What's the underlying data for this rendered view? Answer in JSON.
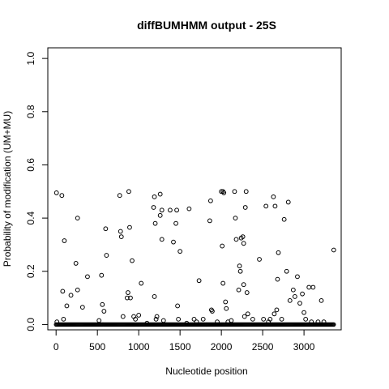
{
  "chart_data": {
    "type": "scatter",
    "title": "diffBUMHMM output - 25S",
    "xlabel": "Nucleotide position",
    "ylabel": "Probability of modification (UM+MU)",
    "xlim": [
      -100,
      3450
    ],
    "ylim": [
      -0.02,
      1.04
    ],
    "xticks": [
      0,
      500,
      1000,
      1500,
      2000,
      2500,
      3000
    ],
    "xtick_labels": [
      "0",
      "500",
      "1000",
      "1500",
      "2000",
      "2500",
      "3000"
    ],
    "yticks": [
      0.0,
      0.2,
      0.4,
      0.6,
      0.8,
      1.0
    ],
    "ytick_labels": [
      "0.0",
      "0.2",
      "0.4",
      "0.6",
      "0.8",
      "1.0"
    ],
    "grid": false,
    "baseline": {
      "x_start": 0,
      "x_end": 3360,
      "step": 10,
      "y": 0.0
    },
    "points": [
      [
        5,
        0.495
      ],
      [
        10,
        0.01
      ],
      [
        70,
        0.485
      ],
      [
        80,
        0.125
      ],
      [
        90,
        0.02
      ],
      [
        100,
        0.315
      ],
      [
        130,
        0.07
      ],
      [
        180,
        0.11
      ],
      [
        240,
        0.23
      ],
      [
        260,
        0.4
      ],
      [
        260,
        0.13
      ],
      [
        320,
        0.065
      ],
      [
        380,
        0.18
      ],
      [
        520,
        0.015
      ],
      [
        550,
        0.185
      ],
      [
        560,
        0.075
      ],
      [
        580,
        0.05
      ],
      [
        600,
        0.36
      ],
      [
        610,
        0.26
      ],
      [
        770,
        0.485
      ],
      [
        780,
        0.35
      ],
      [
        790,
        0.33
      ],
      [
        810,
        0.03
      ],
      [
        860,
        0.1
      ],
      [
        870,
        0.12
      ],
      [
        880,
        0.5
      ],
      [
        890,
        0.365
      ],
      [
        900,
        0.1
      ],
      [
        920,
        0.24
      ],
      [
        940,
        0.03
      ],
      [
        960,
        0.02
      ],
      [
        1000,
        0.035
      ],
      [
        1030,
        0.155
      ],
      [
        1100,
        0.005
      ],
      [
        1180,
        0.44
      ],
      [
        1190,
        0.48
      ],
      [
        1190,
        0.105
      ],
      [
        1200,
        0.38
      ],
      [
        1210,
        0.02
      ],
      [
        1220,
        0.03
      ],
      [
        1260,
        0.49
      ],
      [
        1260,
        0.41
      ],
      [
        1280,
        0.43
      ],
      [
        1280,
        0.32
      ],
      [
        1300,
        0.015
      ],
      [
        1380,
        0.43
      ],
      [
        1420,
        0.31
      ],
      [
        1450,
        0.38
      ],
      [
        1460,
        0.43
      ],
      [
        1470,
        0.07
      ],
      [
        1480,
        0.02
      ],
      [
        1500,
        0.275
      ],
      [
        1580,
        0.005
      ],
      [
        1610,
        0.435
      ],
      [
        1670,
        0.02
      ],
      [
        1700,
        0.01
      ],
      [
        1730,
        0.165
      ],
      [
        1780,
        0.02
      ],
      [
        1860,
        0.39
      ],
      [
        1870,
        0.465
      ],
      [
        1880,
        0.055
      ],
      [
        1890,
        0.05
      ],
      [
        1950,
        0.01
      ],
      [
        2000,
        0.5
      ],
      [
        2010,
        0.295
      ],
      [
        2020,
        0.5
      ],
      [
        2020,
        0.155
      ],
      [
        2030,
        0.495
      ],
      [
        2050,
        0.085
      ],
      [
        2060,
        0.06
      ],
      [
        2080,
        0.01
      ],
      [
        2120,
        0.015
      ],
      [
        2160,
        0.5
      ],
      [
        2170,
        0.4
      ],
      [
        2180,
        0.32
      ],
      [
        2210,
        0.13
      ],
      [
        2220,
        0.22
      ],
      [
        2230,
        0.2
      ],
      [
        2240,
        0.325
      ],
      [
        2260,
        0.33
      ],
      [
        2270,
        0.305
      ],
      [
        2270,
        0.15
      ],
      [
        2280,
        0.03
      ],
      [
        2290,
        0.44
      ],
      [
        2300,
        0.5
      ],
      [
        2310,
        0.12
      ],
      [
        2320,
        0.04
      ],
      [
        2380,
        0.02
      ],
      [
        2460,
        0.245
      ],
      [
        2510,
        0.02
      ],
      [
        2540,
        0.445
      ],
      [
        2570,
        0.01
      ],
      [
        2590,
        0.02
      ],
      [
        2630,
        0.48
      ],
      [
        2640,
        0.04
      ],
      [
        2650,
        0.445
      ],
      [
        2670,
        0.055
      ],
      [
        2680,
        0.17
      ],
      [
        2690,
        0.27
      ],
      [
        2730,
        0.02
      ],
      [
        2760,
        0.395
      ],
      [
        2790,
        0.2
      ],
      [
        2810,
        0.46
      ],
      [
        2830,
        0.09
      ],
      [
        2870,
        0.13
      ],
      [
        2890,
        0.105
      ],
      [
        2920,
        0.18
      ],
      [
        2950,
        0.08
      ],
      [
        2980,
        0.115
      ],
      [
        3000,
        0.045
      ],
      [
        3020,
        0.02
      ],
      [
        3060,
        0.14
      ],
      [
        3090,
        0.01
      ],
      [
        3110,
        0.14
      ],
      [
        3170,
        0.01
      ],
      [
        3210,
        0.09
      ],
      [
        3240,
        0.01
      ],
      [
        3360,
        0.28
      ]
    ]
  }
}
